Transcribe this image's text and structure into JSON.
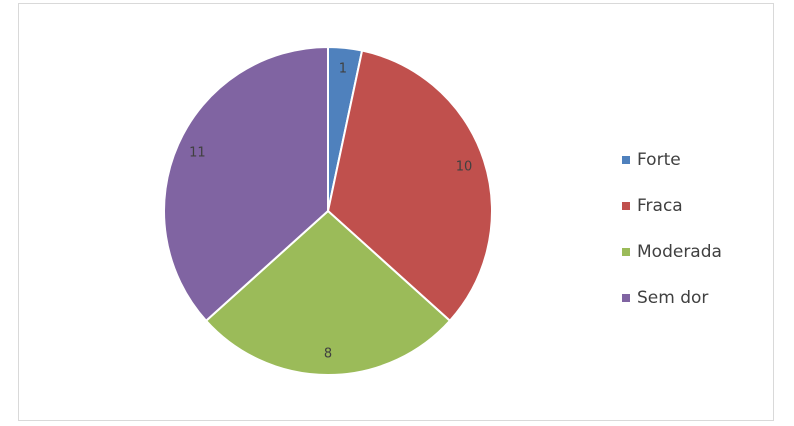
{
  "chart_data": {
    "type": "pie",
    "categories": [
      "Forte",
      "Fraca",
      "Moderada",
      "Sem dor"
    ],
    "values": [
      1,
      10,
      8,
      11
    ],
    "colors": [
      "#4f81bd",
      "#c0504d",
      "#9bbb59",
      "#8064a2"
    ],
    "legend": "right"
  }
}
